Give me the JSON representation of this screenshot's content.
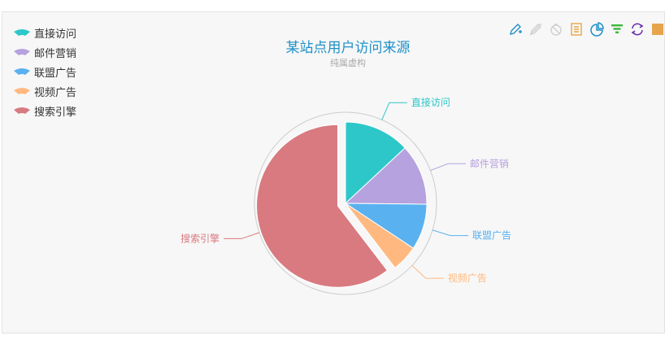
{
  "chart_data": {
    "type": "pie",
    "title": "某站点用户访问来源",
    "subtitle": "纯属虚构",
    "legend_position": "top-left",
    "series": [
      {
        "name": "直接访问",
        "value": 335,
        "color": "#2ec7c9"
      },
      {
        "name": "邮件营销",
        "value": 310,
        "color": "#b6a2de"
      },
      {
        "name": "联盟广告",
        "value": 234,
        "color": "#5ab1ef"
      },
      {
        "name": "视频广告",
        "value": 135,
        "color": "#ffb980"
      },
      {
        "name": "搜索引擎",
        "value": 1548,
        "color": "#d87a80"
      }
    ]
  },
  "toolbox": [
    {
      "name": "mark-icon",
      "color": "#1e90c8"
    },
    {
      "name": "mark-undo-icon",
      "color": "#cfcfcf"
    },
    {
      "name": "mark-clear-icon",
      "color": "#cfcfcf"
    },
    {
      "name": "data-view-icon",
      "color": "#e7a54b"
    },
    {
      "name": "pie-type-icon",
      "color": "#1e90c8"
    },
    {
      "name": "funnel-type-icon",
      "color": "#3cb83c"
    },
    {
      "name": "restore-icon",
      "color": "#6a2eaa"
    },
    {
      "name": "save-image-icon",
      "color": "#e7a54b"
    }
  ]
}
